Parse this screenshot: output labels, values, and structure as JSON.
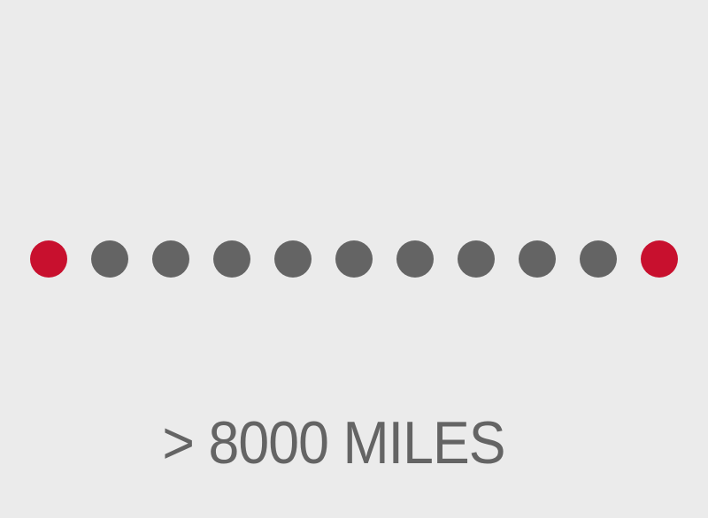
{
  "graphic": {
    "caption": "> 8000 MILES",
    "colors": {
      "background": "#ebebeb",
      "endpoint": "#c8102e",
      "intermediate": "#646464",
      "text": "#646464"
    },
    "dots": [
      {
        "role": "endpoint"
      },
      {
        "role": "intermediate"
      },
      {
        "role": "intermediate"
      },
      {
        "role": "intermediate"
      },
      {
        "role": "intermediate"
      },
      {
        "role": "intermediate"
      },
      {
        "role": "intermediate"
      },
      {
        "role": "intermediate"
      },
      {
        "role": "intermediate"
      },
      {
        "role": "intermediate"
      },
      {
        "role": "endpoint"
      }
    ]
  }
}
